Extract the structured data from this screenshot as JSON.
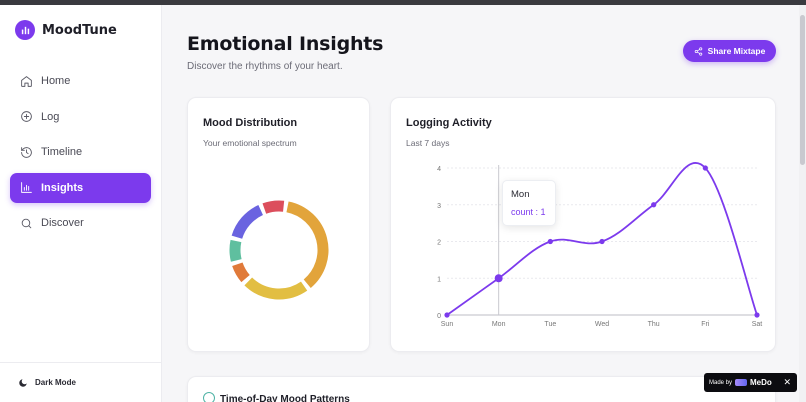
{
  "app": {
    "name": "MoodTune"
  },
  "nav": {
    "items": [
      {
        "label": "Home",
        "icon": "home-icon"
      },
      {
        "label": "Log",
        "icon": "plus-circle-icon"
      },
      {
        "label": "Timeline",
        "icon": "history-icon"
      },
      {
        "label": "Insights",
        "icon": "bar-chart-icon",
        "active": true
      },
      {
        "label": "Discover",
        "icon": "search-icon"
      }
    ]
  },
  "sidebar": {
    "dark_mode_label": "Dark Mode"
  },
  "header": {
    "title": "Emotional Insights",
    "subtitle": "Discover the rhythms of your heart.",
    "share_label": "Share Mixtape"
  },
  "mood_card": {
    "title": "Mood Distribution",
    "subtitle": "Your emotional spectrum"
  },
  "log_card": {
    "title": "Logging Activity",
    "subtitle": "Last 7 days"
  },
  "time_card": {
    "title": "Time-of-Day Mood Patterns"
  },
  "tooltip": {
    "label": "Mon",
    "value_text": "count : 1"
  },
  "badge": {
    "made_by": "Made by",
    "brand": "MeDo",
    "close": "✕"
  },
  "colors": {
    "accent": "#7c3aed"
  },
  "chart_data": [
    {
      "type": "pie",
      "title": "Mood Distribution",
      "values": [
        35,
        22,
        7,
        8,
        14,
        8
      ],
      "colors": [
        "#e2a43b",
        "#e2be42",
        "#e07a3a",
        "#5fbf9f",
        "#6a63e0",
        "#dc4e5c"
      ]
    },
    {
      "type": "line",
      "title": "Logging Activity",
      "categories": [
        "Sun",
        "Mon",
        "Tue",
        "Wed",
        "Thu",
        "Fri",
        "Sat"
      ],
      "series": [
        {
          "values": [
            0,
            1,
            2,
            2,
            3,
            4,
            0
          ]
        }
      ],
      "ylim": [
        0,
        4
      ],
      "yticks": [
        "0",
        "1",
        "2",
        "3",
        "4"
      ],
      "grid": true,
      "color": "#7c3aed"
    }
  ]
}
